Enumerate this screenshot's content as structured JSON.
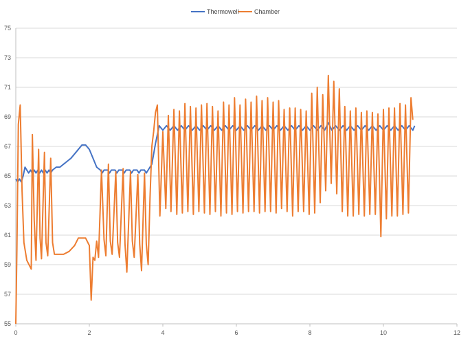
{
  "chart_data": {
    "type": "line",
    "title": "",
    "xlabel": "",
    "ylabel": "",
    "xlim": [
      0,
      12
    ],
    "ylim": [
      55,
      75
    ],
    "x_ticks": [
      "0",
      "2",
      "4",
      "6",
      "8",
      "10",
      "12"
    ],
    "y_ticks": [
      "55",
      "57",
      "59",
      "61",
      "63",
      "65",
      "67",
      "69",
      "71",
      "73",
      "75"
    ],
    "grid": "horizontal",
    "legend_position": "top",
    "series": [
      {
        "name": "Thermowell",
        "color": "#4472c4",
        "points": [
          [
            0.0,
            64.8
          ],
          [
            0.05,
            64.6
          ],
          [
            0.1,
            64.8
          ],
          [
            0.15,
            64.6
          ],
          [
            0.2,
            65.0
          ],
          [
            0.25,
            65.6
          ],
          [
            0.3,
            65.4
          ],
          [
            0.35,
            65.2
          ],
          [
            0.4,
            65.4
          ],
          [
            0.45,
            65.2
          ],
          [
            0.5,
            65.4
          ],
          [
            0.55,
            65.2
          ],
          [
            0.6,
            65.4
          ],
          [
            0.65,
            65.2
          ],
          [
            0.7,
            65.4
          ],
          [
            0.75,
            65.2
          ],
          [
            0.8,
            65.4
          ],
          [
            0.85,
            65.2
          ],
          [
            0.9,
            65.4
          ],
          [
            0.95,
            65.2
          ],
          [
            1.0,
            65.4
          ],
          [
            1.1,
            65.6
          ],
          [
            1.2,
            65.6
          ],
          [
            1.3,
            65.8
          ],
          [
            1.4,
            66.0
          ],
          [
            1.5,
            66.2
          ],
          [
            1.6,
            66.5
          ],
          [
            1.7,
            66.8
          ],
          [
            1.8,
            67.1
          ],
          [
            1.9,
            67.1
          ],
          [
            2.0,
            66.8
          ],
          [
            2.1,
            66.2
          ],
          [
            2.2,
            65.6
          ],
          [
            2.3,
            65.4
          ],
          [
            2.35,
            65.2
          ],
          [
            2.4,
            65.4
          ],
          [
            2.5,
            65.4
          ],
          [
            2.55,
            65.2
          ],
          [
            2.6,
            65.4
          ],
          [
            2.7,
            65.4
          ],
          [
            2.75,
            65.2
          ],
          [
            2.8,
            65.4
          ],
          [
            2.9,
            65.4
          ],
          [
            2.95,
            65.2
          ],
          [
            3.0,
            65.4
          ],
          [
            3.1,
            65.4
          ],
          [
            3.15,
            65.2
          ],
          [
            3.2,
            65.4
          ],
          [
            3.3,
            65.4
          ],
          [
            3.35,
            65.2
          ],
          [
            3.4,
            65.4
          ],
          [
            3.5,
            65.4
          ],
          [
            3.55,
            65.2
          ],
          [
            3.6,
            65.4
          ],
          [
            3.7,
            65.8
          ],
          [
            3.8,
            67.2
          ],
          [
            3.9,
            68.4
          ],
          [
            4.0,
            68.1
          ],
          [
            4.1,
            68.4
          ],
          [
            4.2,
            68.1
          ],
          [
            4.3,
            68.4
          ],
          [
            4.4,
            68.1
          ],
          [
            4.5,
            68.4
          ],
          [
            4.6,
            68.1
          ],
          [
            4.7,
            68.4
          ],
          [
            4.8,
            68.1
          ],
          [
            4.9,
            68.4
          ],
          [
            5.0,
            68.1
          ],
          [
            5.1,
            68.4
          ],
          [
            5.2,
            68.1
          ],
          [
            5.3,
            68.4
          ],
          [
            5.4,
            68.1
          ],
          [
            5.5,
            68.4
          ],
          [
            5.6,
            68.1
          ],
          [
            5.7,
            68.4
          ],
          [
            5.8,
            68.1
          ],
          [
            5.9,
            68.4
          ],
          [
            6.0,
            68.1
          ],
          [
            6.1,
            68.4
          ],
          [
            6.2,
            68.1
          ],
          [
            6.3,
            68.4
          ],
          [
            6.4,
            68.1
          ],
          [
            6.5,
            68.4
          ],
          [
            6.6,
            68.1
          ],
          [
            6.7,
            68.4
          ],
          [
            6.8,
            68.1
          ],
          [
            6.9,
            68.4
          ],
          [
            7.0,
            68.1
          ],
          [
            7.1,
            68.4
          ],
          [
            7.2,
            68.1
          ],
          [
            7.3,
            68.4
          ],
          [
            7.4,
            68.1
          ],
          [
            7.5,
            68.4
          ],
          [
            7.6,
            68.1
          ],
          [
            7.7,
            68.4
          ],
          [
            7.8,
            68.1
          ],
          [
            7.9,
            68.4
          ],
          [
            8.0,
            68.1
          ],
          [
            8.1,
            68.4
          ],
          [
            8.2,
            68.1
          ],
          [
            8.3,
            68.4
          ],
          [
            8.4,
            68.1
          ],
          [
            8.5,
            68.6
          ],
          [
            8.6,
            68.1
          ],
          [
            8.7,
            68.4
          ],
          [
            8.8,
            68.1
          ],
          [
            8.9,
            68.4
          ],
          [
            9.0,
            68.1
          ],
          [
            9.1,
            68.4
          ],
          [
            9.2,
            68.1
          ],
          [
            9.3,
            68.4
          ],
          [
            9.4,
            68.1
          ],
          [
            9.5,
            68.4
          ],
          [
            9.6,
            68.1
          ],
          [
            9.7,
            68.4
          ],
          [
            9.8,
            68.1
          ],
          [
            9.9,
            68.4
          ],
          [
            10.0,
            68.1
          ],
          [
            10.1,
            68.4
          ],
          [
            10.2,
            68.1
          ],
          [
            10.3,
            68.4
          ],
          [
            10.4,
            68.1
          ],
          [
            10.5,
            68.4
          ],
          [
            10.6,
            68.1
          ],
          [
            10.7,
            68.4
          ],
          [
            10.8,
            68.1
          ],
          [
            10.85,
            68.4
          ]
        ]
      },
      {
        "name": "Chamber",
        "color": "#ed7d31",
        "points": [
          [
            0.0,
            55.0
          ],
          [
            0.03,
            60.0
          ],
          [
            0.07,
            68.5
          ],
          [
            0.12,
            69.8
          ],
          [
            0.17,
            64.0
          ],
          [
            0.22,
            60.5
          ],
          [
            0.3,
            59.3
          ],
          [
            0.42,
            58.7
          ],
          [
            0.45,
            67.8
          ],
          [
            0.5,
            62.0
          ],
          [
            0.55,
            59.3
          ],
          [
            0.62,
            66.8
          ],
          [
            0.66,
            60.8
          ],
          [
            0.7,
            59.4
          ],
          [
            0.78,
            66.6
          ],
          [
            0.82,
            60.5
          ],
          [
            0.87,
            59.6
          ],
          [
            0.95,
            66.2
          ],
          [
            1.0,
            60.5
          ],
          [
            1.05,
            59.7
          ],
          [
            1.15,
            59.7
          ],
          [
            1.3,
            59.7
          ],
          [
            1.45,
            59.9
          ],
          [
            1.6,
            60.3
          ],
          [
            1.7,
            60.8
          ],
          [
            1.8,
            60.8
          ],
          [
            1.9,
            60.8
          ],
          [
            2.0,
            60.3
          ],
          [
            2.05,
            56.6
          ],
          [
            2.1,
            59.5
          ],
          [
            2.15,
            59.3
          ],
          [
            2.2,
            60.6
          ],
          [
            2.25,
            59.5
          ],
          [
            2.33,
            65.4
          ],
          [
            2.4,
            60.7
          ],
          [
            2.45,
            59.6
          ],
          [
            2.52,
            65.8
          ],
          [
            2.57,
            60.6
          ],
          [
            2.62,
            59.7
          ],
          [
            2.72,
            65.3
          ],
          [
            2.77,
            60.5
          ],
          [
            2.82,
            59.5
          ],
          [
            2.92,
            65.5
          ],
          [
            2.97,
            60.4
          ],
          [
            3.02,
            58.5
          ],
          [
            3.12,
            65.3
          ],
          [
            3.17,
            60.6
          ],
          [
            3.22,
            59.5
          ],
          [
            3.32,
            65.1
          ],
          [
            3.37,
            60.4
          ],
          [
            3.42,
            58.6
          ],
          [
            3.5,
            65.2
          ],
          [
            3.55,
            60.4
          ],
          [
            3.6,
            59.0
          ],
          [
            3.65,
            63.5
          ],
          [
            3.7,
            67.0
          ],
          [
            3.75,
            68.0
          ],
          [
            3.8,
            69.3
          ],
          [
            3.85,
            69.8
          ],
          [
            3.92,
            62.3
          ],
          [
            4.0,
            68.0
          ],
          [
            4.08,
            62.8
          ],
          [
            4.15,
            69.1
          ],
          [
            4.22,
            62.6
          ],
          [
            4.3,
            69.5
          ],
          [
            4.38,
            62.4
          ],
          [
            4.45,
            69.4
          ],
          [
            4.53,
            62.5
          ],
          [
            4.6,
            69.9
          ],
          [
            4.68,
            62.6
          ],
          [
            4.75,
            69.7
          ],
          [
            4.83,
            62.4
          ],
          [
            4.9,
            69.6
          ],
          [
            4.98,
            62.6
          ],
          [
            5.05,
            69.8
          ],
          [
            5.13,
            62.5
          ],
          [
            5.2,
            69.9
          ],
          [
            5.28,
            62.4
          ],
          [
            5.35,
            69.7
          ],
          [
            5.43,
            62.6
          ],
          [
            5.5,
            69.4
          ],
          [
            5.58,
            62.3
          ],
          [
            5.65,
            70.0
          ],
          [
            5.73,
            62.5
          ],
          [
            5.8,
            69.8
          ],
          [
            5.88,
            62.4
          ],
          [
            5.95,
            70.3
          ],
          [
            6.03,
            62.6
          ],
          [
            6.1,
            69.8
          ],
          [
            6.18,
            62.5
          ],
          [
            6.25,
            70.2
          ],
          [
            6.33,
            62.6
          ],
          [
            6.4,
            70.0
          ],
          [
            6.48,
            62.6
          ],
          [
            6.55,
            70.4
          ],
          [
            6.63,
            62.5
          ],
          [
            6.7,
            70.1
          ],
          [
            6.78,
            62.6
          ],
          [
            6.85,
            70.3
          ],
          [
            6.93,
            62.6
          ],
          [
            7.0,
            70.0
          ],
          [
            7.08,
            62.5
          ],
          [
            7.15,
            70.1
          ],
          [
            7.23,
            62.8
          ],
          [
            7.3,
            69.5
          ],
          [
            7.38,
            62.6
          ],
          [
            7.45,
            69.6
          ],
          [
            7.53,
            62.3
          ],
          [
            7.6,
            69.6
          ],
          [
            7.68,
            62.6
          ],
          [
            7.75,
            69.5
          ],
          [
            7.83,
            62.6
          ],
          [
            7.9,
            69.4
          ],
          [
            7.98,
            62.4
          ],
          [
            8.05,
            70.6
          ],
          [
            8.13,
            62.5
          ],
          [
            8.2,
            71.0
          ],
          [
            8.28,
            63.2
          ],
          [
            8.35,
            70.5
          ],
          [
            8.43,
            64.0
          ],
          [
            8.5,
            71.8
          ],
          [
            8.58,
            64.5
          ],
          [
            8.65,
            71.4
          ],
          [
            8.73,
            63.8
          ],
          [
            8.8,
            70.9
          ],
          [
            8.88,
            62.6
          ],
          [
            8.95,
            69.7
          ],
          [
            9.03,
            62.3
          ],
          [
            9.1,
            69.4
          ],
          [
            9.18,
            62.3
          ],
          [
            9.25,
            69.6
          ],
          [
            9.33,
            62.4
          ],
          [
            9.4,
            69.3
          ],
          [
            9.48,
            62.3
          ],
          [
            9.55,
            69.4
          ],
          [
            9.63,
            62.4
          ],
          [
            9.7,
            69.3
          ],
          [
            9.78,
            62.4
          ],
          [
            9.85,
            69.2
          ],
          [
            9.93,
            60.9
          ],
          [
            10.0,
            69.5
          ],
          [
            10.08,
            62.1
          ],
          [
            10.15,
            69.6
          ],
          [
            10.23,
            62.3
          ],
          [
            10.3,
            69.6
          ],
          [
            10.38,
            62.3
          ],
          [
            10.45,
            69.9
          ],
          [
            10.53,
            62.4
          ],
          [
            10.6,
            69.8
          ],
          [
            10.68,
            62.5
          ],
          [
            10.75,
            70.3
          ],
          [
            10.8,
            68.8
          ]
        ]
      }
    ]
  }
}
